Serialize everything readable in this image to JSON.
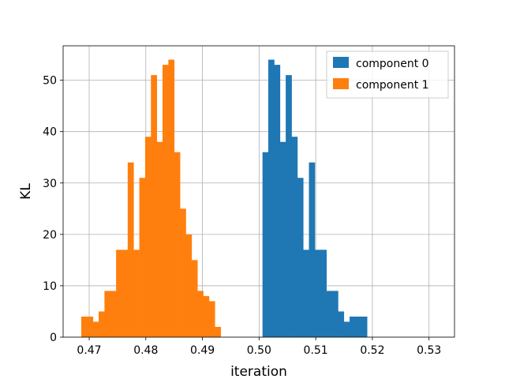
{
  "chart_data": {
    "type": "bar",
    "histogram": true,
    "xlabel": "iteration",
    "ylabel": "KL",
    "xlim": [
      0.4654,
      0.5345
    ],
    "ylim": [
      0,
      56.7
    ],
    "xticks": [
      0.47,
      0.48,
      0.49,
      0.5,
      0.51,
      0.52,
      0.53
    ],
    "xtick_labels": [
      "0.47",
      "0.48",
      "0.49",
      "0.50",
      "0.51",
      "0.52",
      "0.53"
    ],
    "yticks": [
      0,
      10,
      20,
      30,
      40,
      50
    ],
    "ytick_labels": [
      "0",
      "10",
      "20",
      "30",
      "40",
      "50"
    ],
    "grid": true,
    "legend": "top-right",
    "series": [
      {
        "name": "component 0",
        "color": "#1f77b4",
        "bin_start": 0.5006,
        "bin_width": 0.001025,
        "counts": [
          36,
          54,
          53,
          38,
          51,
          39,
          31,
          17,
          34,
          17,
          17,
          9,
          9,
          5,
          3,
          4,
          4,
          4,
          0,
          0,
          0,
          0,
          0,
          0,
          0,
          0,
          0,
          0,
          0,
          0
        ]
      },
      {
        "name": "component 1",
        "color": "#ff7f0e",
        "bin_start": 0.4686,
        "bin_width": 0.001025,
        "counts": [
          4,
          4,
          3,
          5,
          9,
          9,
          17,
          17,
          34,
          17,
          31,
          39,
          51,
          38,
          53,
          54,
          36,
          25,
          20,
          15,
          9,
          8,
          7,
          2,
          0,
          0,
          0,
          0,
          0,
          0
        ]
      }
    ]
  }
}
